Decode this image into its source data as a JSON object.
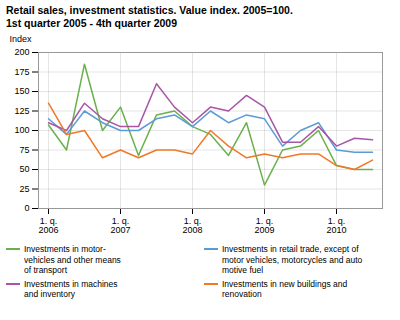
{
  "chart_data": {
    "type": "line",
    "title": "Retail sales, investment statistics. Value index. 2005=100.",
    "subtitle": "1st quarter 2005 - 4th quarter 2009",
    "ylabel": "Index",
    "categories": [
      "1. q.\n2006",
      null,
      null,
      null,
      "1. q.\n2007",
      null,
      null,
      null,
      "1. q.\n2008",
      null,
      null,
      null,
      "1. q.\n2009",
      null,
      null,
      null,
      "1. q.\n2010",
      null,
      null
    ],
    "series": [
      {
        "name": "Investments in motor-\nvehicles and other means\nof transport",
        "color": "#6ab04c",
        "values": [
          107,
          75,
          185,
          100,
          130,
          68,
          120,
          125,
          105,
          95,
          68,
          110,
          30,
          75,
          80,
          100,
          55,
          50,
          50
        ]
      },
      {
        "name": "Investments in retail trade, except of\nmotor vehicles, motorcycles and auto\nmotive fuel",
        "color": "#5b9bd5",
        "values": [
          115,
          95,
          125,
          110,
          100,
          100,
          115,
          120,
          105,
          125,
          110,
          120,
          115,
          80,
          100,
          110,
          75,
          72,
          72
        ]
      },
      {
        "name": "Investments in machines\nand inventory",
        "color": "#a855a8",
        "values": [
          110,
          100,
          135,
          115,
          105,
          105,
          160,
          130,
          110,
          130,
          125,
          145,
          130,
          85,
          85,
          105,
          80,
          90,
          88
        ]
      },
      {
        "name": "Investments in new buildings and\nrenovation",
        "color": "#f07828",
        "values": [
          135,
          95,
          100,
          65,
          75,
          65,
          75,
          75,
          70,
          100,
          80,
          65,
          70,
          65,
          70,
          70,
          55,
          50,
          62
        ]
      }
    ],
    "ylim": [
      0,
      200
    ],
    "yticks": [
      0,
      25,
      50,
      75,
      100,
      125,
      150,
      175,
      200
    ],
    "grid": true,
    "legend": "bottom"
  }
}
